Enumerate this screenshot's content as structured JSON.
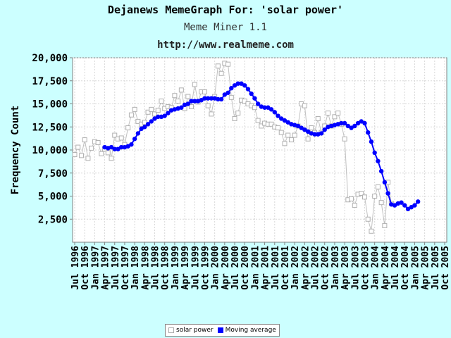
{
  "header": {
    "title": "Dejanews MemeGraph For: 'solar power'",
    "subtitle": "Meme Miner 1.1",
    "url": "http://www.realmeme.com"
  },
  "chart_data": {
    "type": "line",
    "title": "Dejanews MemeGraph For: 'solar power'",
    "xlabel": "",
    "ylabel": "Frequency Count",
    "ylim": [
      0,
      20000
    ],
    "yticks": [
      2500,
      5000,
      7500,
      10000,
      12500,
      15000,
      17500,
      20000
    ],
    "ytick_labels": [
      "2,500",
      "5,000",
      "7,500",
      "10,000",
      "12,500",
      "15,000",
      "17,500",
      "20,000"
    ],
    "x_tick_labels": [
      "Jul 1996",
      "Oct 1996",
      "Jan 1997",
      "Apr 1997",
      "Jul 1997",
      "Oct 1997",
      "Jan 1998",
      "Apr 1998",
      "Jul 1998",
      "Oct 1998",
      "Jan 1999",
      "Apr 1999",
      "Jul 1999",
      "Oct 1999",
      "Jan 2000",
      "Apr 2000",
      "Jul 2000",
      "Oct 2000",
      "Jan 2001",
      "Apr 2001",
      "Jul 2001",
      "Oct 2001",
      "Jan 2002",
      "Apr 2002",
      "Jul 2002",
      "Oct 2002",
      "Jan 2003",
      "Apr 2003",
      "Jul 2003",
      "Oct 2003",
      "Jan 2004",
      "Apr 2004",
      "Jul 2004",
      "Oct 2004",
      "Jan 2005",
      "Apr 2005",
      "Jul 2005",
      "Oct 2005"
    ],
    "x_start": "1996-07",
    "grid": true,
    "legend_position": "bottom-center",
    "series": [
      {
        "name": "solar power",
        "color": "#c0c0c0",
        "marker": "open-square",
        "values": [
          9500,
          10300,
          9400,
          11100,
          9100,
          10200,
          10900,
          10800,
          9600,
          10100,
          9700,
          9100,
          11600,
          11200,
          11300,
          10600,
          12400,
          13800,
          14400,
          13100,
          12800,
          13000,
          14100,
          14400,
          13900,
          14300,
          15300,
          14500,
          14700,
          14600,
          15900,
          15300,
          16500,
          14500,
          15800,
          14700,
          17100,
          15200,
          16300,
          16300,
          14800,
          13900,
          15800,
          19100,
          18300,
          19400,
          19300,
          15700,
          13400,
          14000,
          15400,
          15300,
          15000,
          14800,
          14600,
          13200,
          12600,
          12900,
          12800,
          12800,
          12500,
          12400,
          11900,
          10700,
          11600,
          11100,
          11600,
          12600,
          15000,
          14800,
          11200,
          12400,
          11900,
          13400,
          11900,
          12600,
          14000,
          12600,
          13600,
          14000,
          12800,
          11200,
          4600,
          4700,
          4000,
          5200,
          5300,
          4900,
          2500,
          1200,
          5000,
          6000,
          4300,
          1800,
          6500,
          4200
        ]
      },
      {
        "name": "Moving average",
        "color": "#0000ff",
        "marker": "filled-circle",
        "start_index": 9,
        "values": [
          10300,
          10200,
          10300,
          10100,
          10100,
          10300,
          10300,
          10400,
          10600,
          11200,
          11800,
          12300,
          12500,
          12800,
          13100,
          13400,
          13600,
          13600,
          13700,
          14000,
          14300,
          14400,
          14500,
          14600,
          14900,
          15000,
          15300,
          15300,
          15300,
          15400,
          15600,
          15600,
          15600,
          15600,
          15500,
          15500,
          16000,
          16200,
          16700,
          17000,
          17200,
          17200,
          17000,
          16600,
          16100,
          15600,
          15000,
          14700,
          14600,
          14600,
          14400,
          14100,
          13700,
          13400,
          13200,
          13000,
          12800,
          12700,
          12600,
          12400,
          12200,
          12000,
          11800,
          11700,
          11700,
          11800,
          12200,
          12500,
          12600,
          12700,
          12800,
          12900,
          12900,
          12600,
          12400,
          12600,
          12900,
          13100,
          12900,
          11900,
          10900,
          9700,
          8800,
          7700,
          6500,
          5300,
          4100,
          4000,
          4200,
          4300,
          4000,
          3600,
          3800,
          4000,
          4400
        ]
      }
    ]
  },
  "legend": {
    "items": [
      {
        "label": "solar power"
      },
      {
        "label": "Moving average"
      }
    ]
  }
}
